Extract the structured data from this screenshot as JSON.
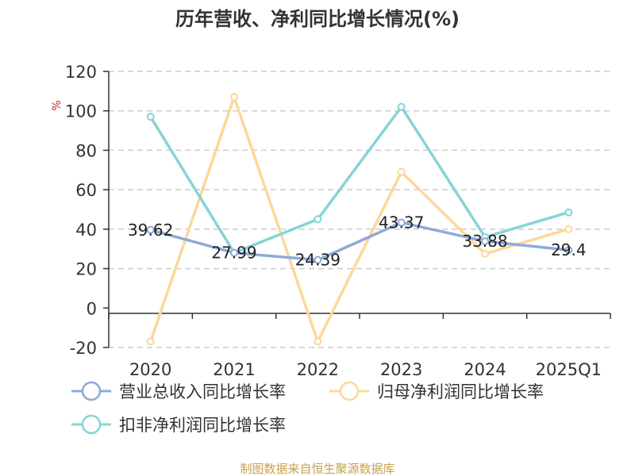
{
  "chart_data": {
    "type": "line",
    "title": "历年营收、净利同比增长情况(%)",
    "unit_label": "%",
    "categories": [
      "2020",
      "2021",
      "2022",
      "2023",
      "2024",
      "2025Q1"
    ],
    "ylim": [
      -20,
      120
    ],
    "yticks": [
      -20,
      0,
      20,
      40,
      60,
      80,
      100,
      120
    ],
    "grid": true,
    "legend_position": "bottom",
    "series": [
      {
        "name": "营业总收入同比增长率",
        "color": "#8eaad8",
        "values": [
          39.62,
          27.99,
          24.39,
          43.37,
          33.88,
          29.4
        ],
        "data_labels": [
          "39.62",
          "27.99",
          "24.39",
          "43.37",
          "33.88",
          "29.4"
        ]
      },
      {
        "name": "归母净利润同比增长率",
        "color": "#fbd89a",
        "values": [
          -17,
          107,
          -17,
          69,
          27.5,
          40
        ],
        "data_labels": []
      },
      {
        "name": "扣非净利润同比增长率",
        "color": "#86d4d6",
        "values": [
          97,
          28,
          45,
          102,
          36,
          48.5
        ],
        "data_labels": []
      }
    ],
    "source": "制图数据来自恒生聚源数据库"
  }
}
